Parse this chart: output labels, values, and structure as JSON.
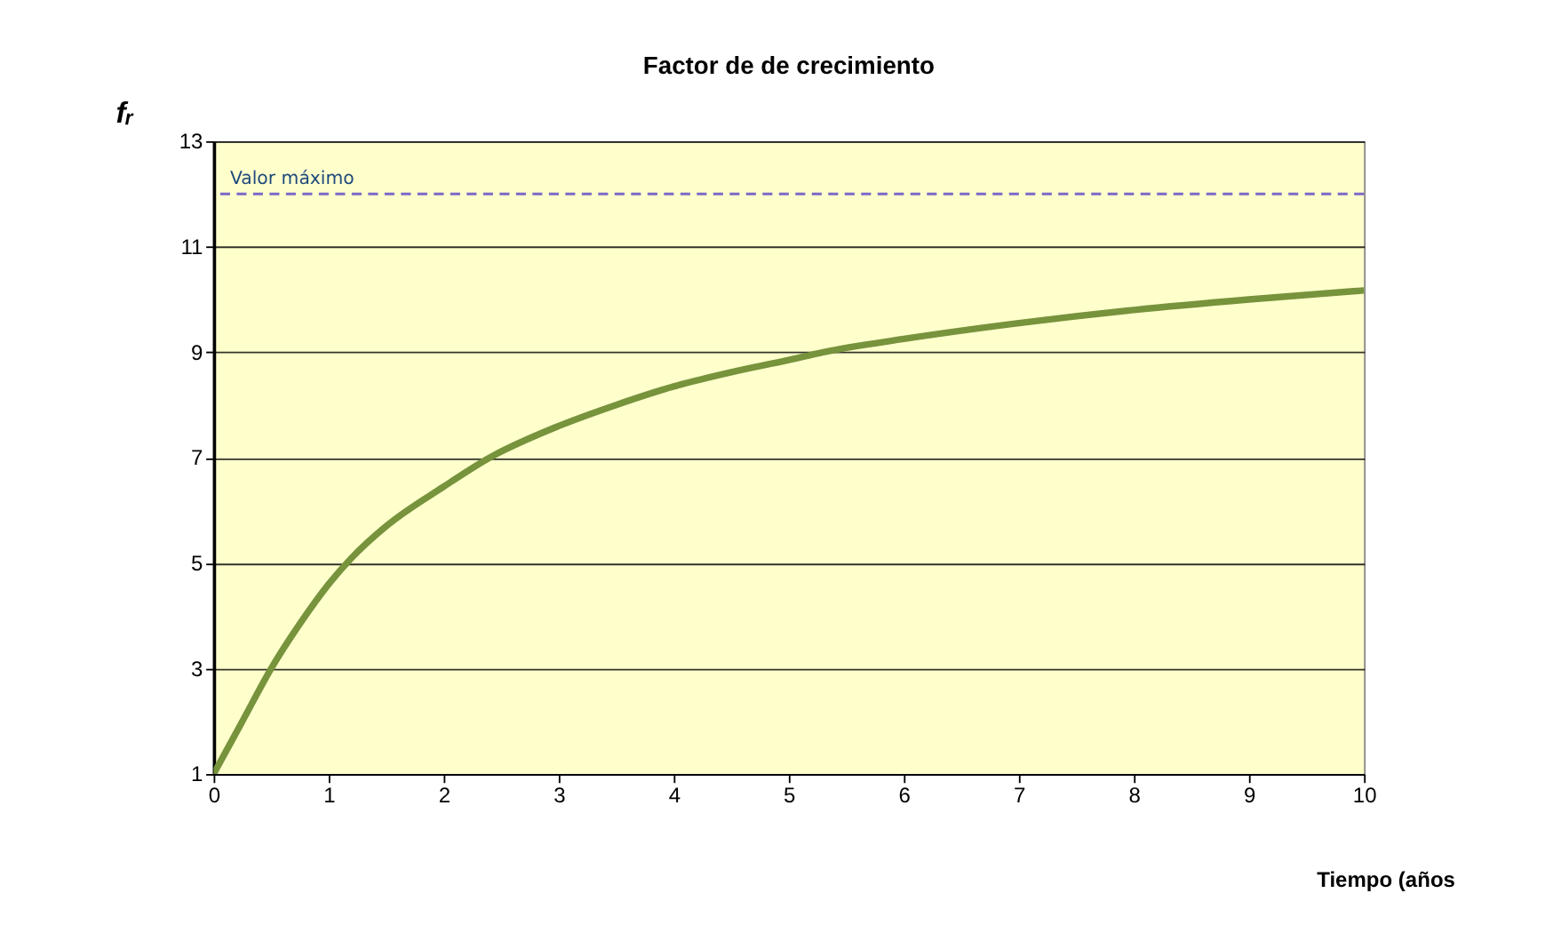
{
  "chart_data": {
    "type": "line",
    "title": "Factor de de crecimiento",
    "xlabel": "Tiempo (años",
    "ylabel": "fᵣ",
    "x": [
      0,
      0.25,
      0.5,
      0.75,
      1,
      1.2,
      1.5,
      2,
      2.4,
      3,
      3.5,
      4,
      4.5,
      5,
      5.3,
      6,
      7,
      8,
      9,
      10
    ],
    "series": [
      {
        "color": "#77933c",
        "values": [
          1,
          2.0,
          3.0,
          3.85,
          4.6,
          5.1,
          5.7,
          6.45,
          7.0,
          7.6,
          8.0,
          8.35,
          8.62,
          8.85,
          9.0,
          9.25,
          9.55,
          9.8,
          10.0,
          10.17
        ]
      }
    ],
    "xlim": [
      0,
      10
    ],
    "xticks": [
      0,
      1,
      2,
      3,
      4,
      5,
      6,
      7,
      8,
      9,
      10
    ],
    "ylim": [
      1,
      13
    ],
    "yticks": [
      1,
      3,
      5,
      7,
      9,
      11,
      13
    ],
    "grid": "y",
    "marker": "none",
    "line_style": "solid",
    "ref_lines": [
      {
        "axis": "y",
        "value": 12,
        "label": "Valor máximo",
        "color": "#7b68c8",
        "line_style": "dashed"
      }
    ]
  }
}
